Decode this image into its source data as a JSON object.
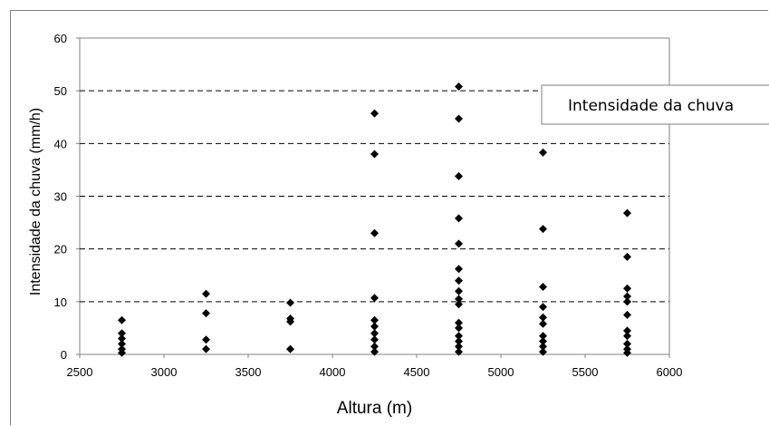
{
  "chart_data": {
    "type": "scatter",
    "title": "",
    "xlabel": "Altura (m)",
    "ylabel": "Intensidade da chuva (mm/h)",
    "xlim": [
      2500,
      6000
    ],
    "ylim": [
      0,
      60
    ],
    "xticks": [
      "2500",
      "3000",
      "3500",
      "4000",
      "4500",
      "5000",
      "5500",
      "6000"
    ],
    "yticks": [
      "0",
      "10",
      "20",
      "30",
      "40",
      "50",
      "60"
    ],
    "grid": "horizontal-dashed",
    "legend": {
      "label": "Intensidade da chuva",
      "placement": "right"
    },
    "marker": "diamond",
    "color": "#000000",
    "series": [
      {
        "name": "Intensidade da chuva",
        "points": [
          [
            2750,
            6.5
          ],
          [
            2750,
            4.0
          ],
          [
            2750,
            3.0
          ],
          [
            2750,
            2.0
          ],
          [
            2750,
            1.0
          ],
          [
            2750,
            0.3
          ],
          [
            3250,
            11.5
          ],
          [
            3250,
            7.8
          ],
          [
            3250,
            2.8
          ],
          [
            3250,
            1.0
          ],
          [
            3750,
            9.8
          ],
          [
            3750,
            6.8
          ],
          [
            3750,
            6.2
          ],
          [
            3750,
            1.0
          ],
          [
            4250,
            45.7
          ],
          [
            4250,
            38.0
          ],
          [
            4250,
            23.0
          ],
          [
            4250,
            10.7
          ],
          [
            4250,
            6.5
          ],
          [
            4250,
            5.3
          ],
          [
            4250,
            4.0
          ],
          [
            4250,
            2.8
          ],
          [
            4250,
            1.5
          ],
          [
            4250,
            0.5
          ],
          [
            4750,
            50.8
          ],
          [
            4750,
            44.7
          ],
          [
            4750,
            33.8
          ],
          [
            4750,
            25.8
          ],
          [
            4750,
            21.0
          ],
          [
            4750,
            16.2
          ],
          [
            4750,
            14.0
          ],
          [
            4750,
            12.0
          ],
          [
            4750,
            10.5
          ],
          [
            4750,
            9.5
          ],
          [
            4750,
            6.0
          ],
          [
            4750,
            5.0
          ],
          [
            4750,
            3.5
          ],
          [
            4750,
            2.5
          ],
          [
            4750,
            1.5
          ],
          [
            4750,
            0.5
          ],
          [
            5250,
            38.3
          ],
          [
            5250,
            23.8
          ],
          [
            5250,
            12.8
          ],
          [
            5250,
            9.0
          ],
          [
            5250,
            7.0
          ],
          [
            5250,
            5.8
          ],
          [
            5250,
            3.5
          ],
          [
            5250,
            2.5
          ],
          [
            5250,
            1.5
          ],
          [
            5250,
            0.5
          ],
          [
            5750,
            26.8
          ],
          [
            5750,
            18.5
          ],
          [
            5750,
            12.5
          ],
          [
            5750,
            11.0
          ],
          [
            5750,
            10.0
          ],
          [
            5750,
            7.5
          ],
          [
            5750,
            4.5
          ],
          [
            5750,
            3.5
          ],
          [
            5750,
            2.0
          ],
          [
            5750,
            1.0
          ],
          [
            5750,
            0.3
          ]
        ]
      }
    ]
  }
}
